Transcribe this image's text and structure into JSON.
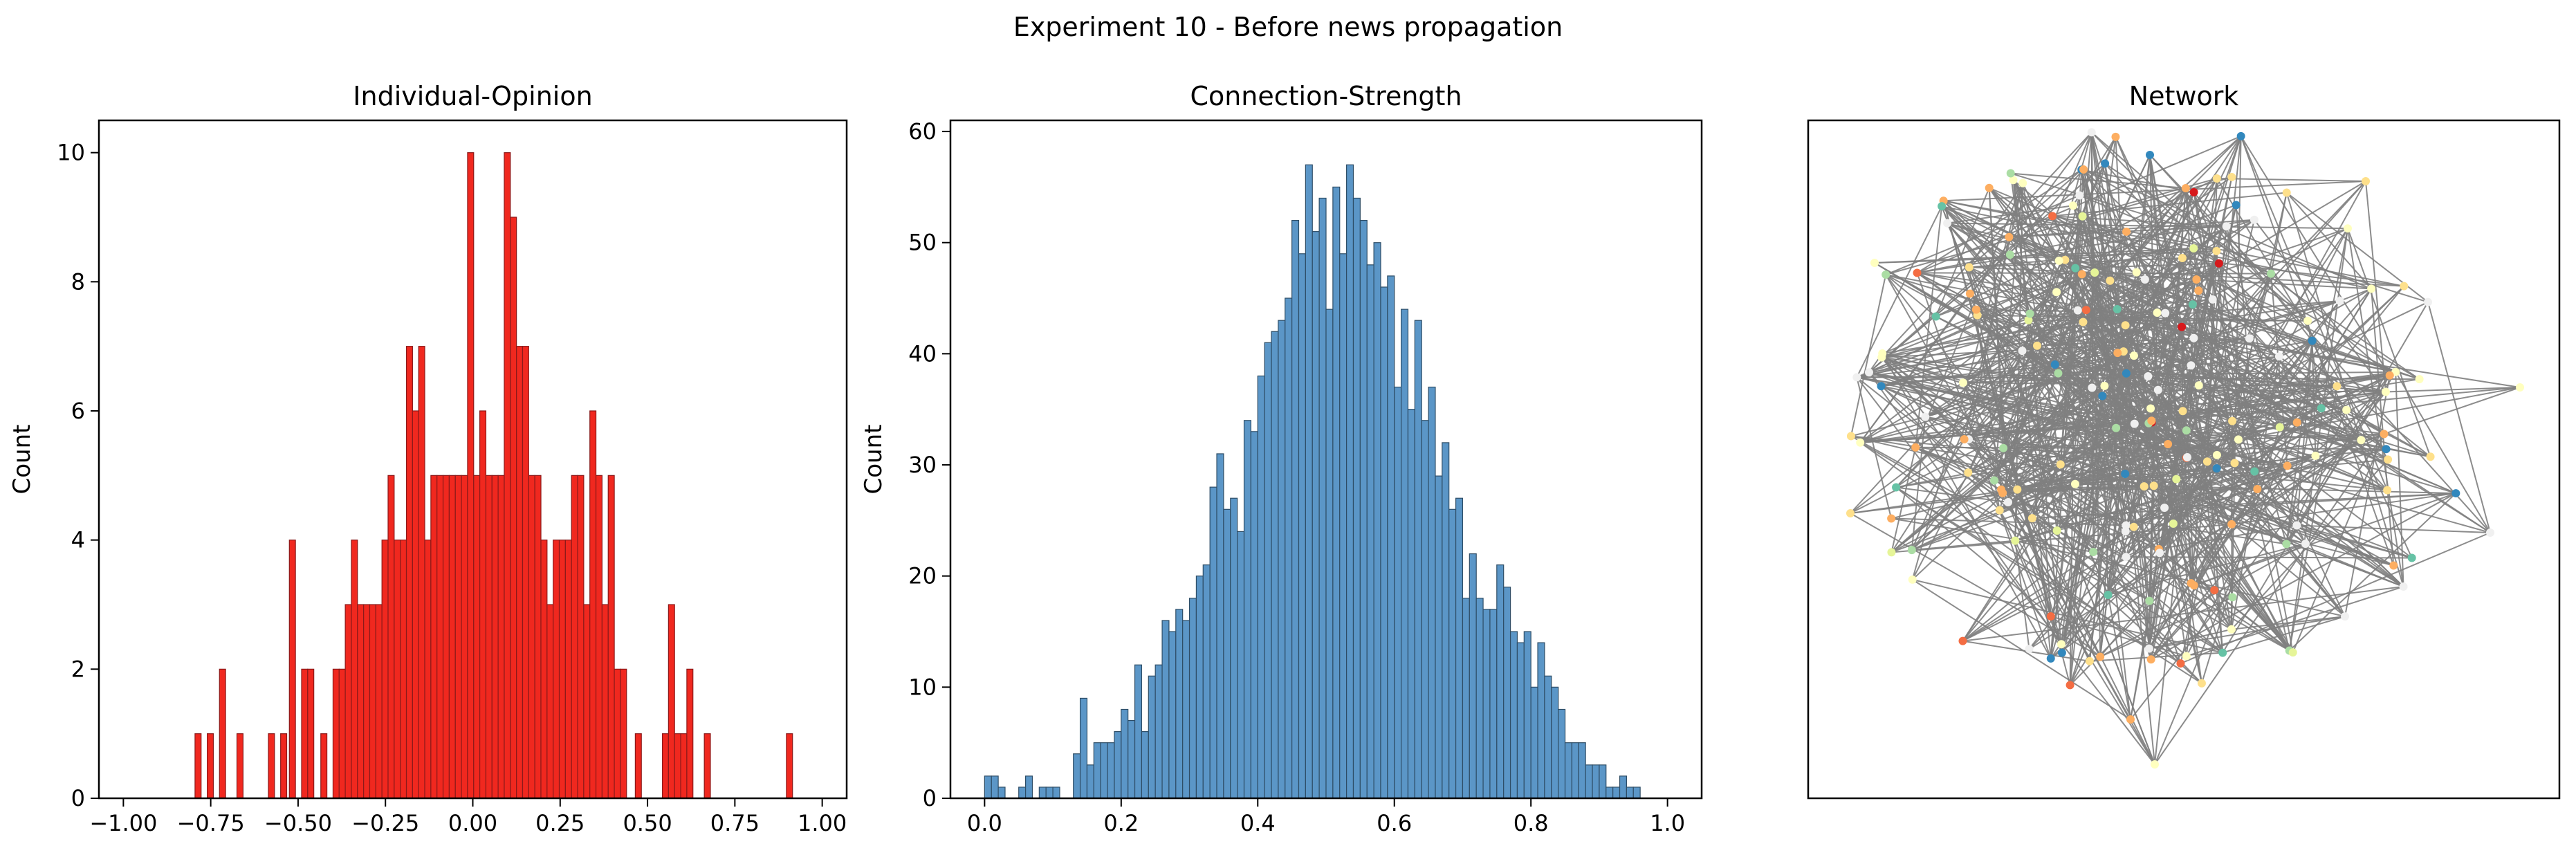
{
  "figure": {
    "suptitle": "Experiment 10 - Before news propagation"
  },
  "chart_data": [
    {
      "type": "bar",
      "title": "Individual-Opinion",
      "xlabel": "",
      "ylabel": "Count",
      "xlim": [
        -1.07,
        1.07
      ],
      "ylim": [
        0,
        10.5
      ],
      "xticks": [
        -1.0,
        -0.75,
        -0.5,
        -0.25,
        0.0,
        0.25,
        0.5,
        0.75,
        1.0
      ],
      "xtick_labels": [
        "−1.00",
        "−0.75",
        "−0.50",
        "−0.25",
        "0.00",
        "0.25",
        "0.50",
        "0.75",
        "1.00"
      ],
      "yticks": [
        0,
        2,
        4,
        6,
        8,
        10
      ],
      "ytick_labels": [
        "0",
        "2",
        "4",
        "6",
        "8",
        "10"
      ],
      "grid": false,
      "color": "#f0281f",
      "edgecolor": "#8b1a1a",
      "bin_width": 0.0175,
      "bins": [
        [
          -0.795,
          1
        ],
        [
          -0.76,
          1
        ],
        [
          -0.725,
          2
        ],
        [
          -0.675,
          1
        ],
        [
          -0.585,
          1
        ],
        [
          -0.55,
          1
        ],
        [
          -0.525,
          4
        ],
        [
          -0.49,
          2
        ],
        [
          -0.4725,
          2
        ],
        [
          -0.435,
          1
        ],
        [
          -0.4,
          2
        ],
        [
          -0.3825,
          2
        ],
        [
          -0.365,
          3
        ],
        [
          -0.3475,
          4
        ],
        [
          -0.33,
          3
        ],
        [
          -0.3125,
          3
        ],
        [
          -0.295,
          3
        ],
        [
          -0.2775,
          3
        ],
        [
          -0.26,
          4
        ],
        [
          -0.2425,
          5
        ],
        [
          -0.225,
          4
        ],
        [
          -0.2075,
          4
        ],
        [
          -0.19,
          7
        ],
        [
          -0.1725,
          6
        ],
        [
          -0.155,
          7
        ],
        [
          -0.1375,
          4
        ],
        [
          -0.12,
          5
        ],
        [
          -0.1025,
          5
        ],
        [
          -0.085,
          5
        ],
        [
          -0.0675,
          5
        ],
        [
          -0.05,
          5
        ],
        [
          -0.0325,
          5
        ],
        [
          -0.015,
          10
        ],
        [
          0.0025,
          5
        ],
        [
          0.02,
          6
        ],
        [
          0.0375,
          5
        ],
        [
          0.055,
          5
        ],
        [
          0.0725,
          5
        ],
        [
          0.09,
          10
        ],
        [
          0.1075,
          9
        ],
        [
          0.125,
          7
        ],
        [
          0.1425,
          7
        ],
        [
          0.16,
          5
        ],
        [
          0.1775,
          5
        ],
        [
          0.195,
          4
        ],
        [
          0.2125,
          3
        ],
        [
          0.23,
          4
        ],
        [
          0.2475,
          4
        ],
        [
          0.265,
          4
        ],
        [
          0.2825,
          5
        ],
        [
          0.3,
          5
        ],
        [
          0.3175,
          3
        ],
        [
          0.335,
          6
        ],
        [
          0.3525,
          5
        ],
        [
          0.37,
          3
        ],
        [
          0.3875,
          5
        ],
        [
          0.405,
          2
        ],
        [
          0.4225,
          2
        ],
        [
          0.465,
          1
        ],
        [
          0.5425,
          1
        ],
        [
          0.56,
          3
        ],
        [
          0.5775,
          1
        ],
        [
          0.595,
          1
        ],
        [
          0.6125,
          2
        ],
        [
          0.6625,
          1
        ],
        [
          0.8975,
          1
        ]
      ]
    },
    {
      "type": "bar",
      "title": "Connection-Strength",
      "xlabel": "",
      "ylabel": "Count",
      "xlim": [
        -0.05,
        1.05
      ],
      "ylim": [
        0,
        61
      ],
      "xticks": [
        0.0,
        0.2,
        0.4,
        0.6,
        0.8,
        1.0
      ],
      "xtick_labels": [
        "0.0",
        "0.2",
        "0.4",
        "0.6",
        "0.8",
        "1.0"
      ],
      "yticks": [
        0,
        10,
        20,
        30,
        40,
        50,
        60
      ],
      "ytick_labels": [
        "0",
        "10",
        "20",
        "30",
        "40",
        "50",
        "60"
      ],
      "grid": false,
      "color": "#5b96c7",
      "edgecolor": "#2e4d66",
      "bin_width": 0.01,
      "counts": [
        2,
        2,
        1,
        0,
        0,
        1,
        2,
        0,
        1,
        1,
        1,
        0,
        0,
        4,
        9,
        3,
        5,
        5,
        5,
        6,
        8,
        7,
        12,
        6,
        11,
        12,
        16,
        15,
        17,
        16,
        18,
        20,
        21,
        28,
        31,
        26,
        27,
        24,
        34,
        33,
        38,
        41,
        42,
        43,
        45,
        52,
        49,
        57,
        51,
        54,
        44,
        55,
        49,
        57,
        54,
        52,
        48,
        50,
        46,
        47,
        37,
        44,
        35,
        43,
        34,
        37,
        29,
        32,
        26,
        27,
        18,
        22,
        18,
        17,
        17,
        21,
        19,
        15,
        14,
        15,
        10,
        14,
        11,
        10,
        8,
        5,
        5,
        5,
        3,
        3,
        3,
        1,
        1,
        2,
        1,
        1,
        0,
        0,
        0,
        0
      ]
    }
  ],
  "network": {
    "title": "Network",
    "edge_color": "#808080",
    "node_palette": [
      "#d7191c",
      "#f46d43",
      "#fdae61",
      "#fee08b",
      "#ffffbf",
      "#e6f598",
      "#abdda4",
      "#66c2a5",
      "#3288bd",
      "#f0f0f0"
    ]
  }
}
